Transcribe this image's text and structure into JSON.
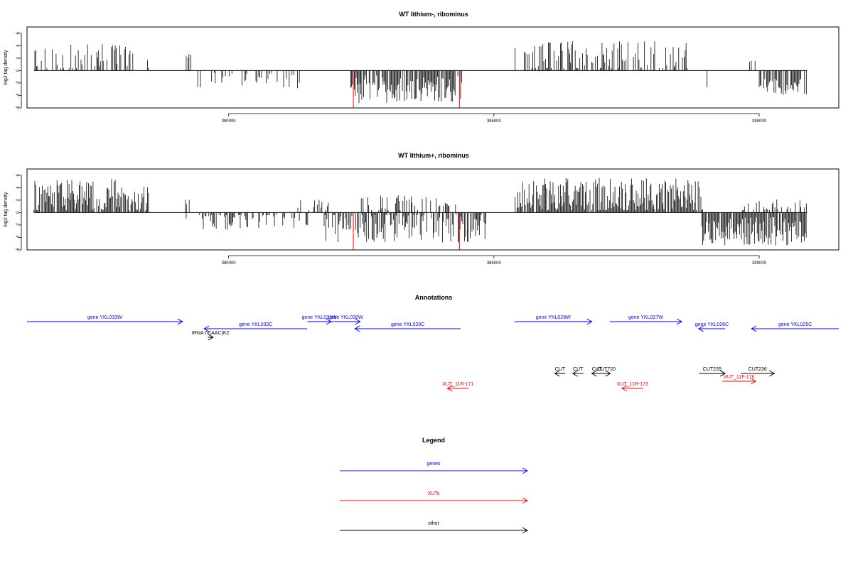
{
  "colors": {
    "genes": "#0000ff",
    "xuts": "#ff0000",
    "other": "#000000",
    "bars": "#000000",
    "axis": "#000000"
  },
  "chart_data": [
    {
      "type": "bar",
      "title": "WT lithium-, ribominus",
      "ylabel": "log2 tag density",
      "xlim": [
        376200,
        391500
      ],
      "ylim": [
        -6,
        7
      ],
      "x_ticks": [
        380000,
        385000,
        390000
      ],
      "y_ticks": [
        -6,
        -4,
        -2,
        0,
        2,
        4,
        6
      ],
      "red_markers": [
        382350,
        384350
      ],
      "plus_regions": [
        {
          "start": 376330,
          "end": 378500,
          "mean": 1.9,
          "spread": 2.4,
          "density": 0.4
        },
        {
          "start": 379200,
          "end": 379300,
          "mean": 2.2,
          "spread": 0.5,
          "density": 0.3
        },
        {
          "start": 385400,
          "end": 388650,
          "mean": 2.2,
          "spread": 2.6,
          "density": 0.45
        },
        {
          "start": 389800,
          "end": 389950,
          "mean": 2.0,
          "spread": 1.0,
          "density": 0.2
        }
      ],
      "minus_regions": [
        {
          "start": 379400,
          "end": 381450,
          "mean": -1.6,
          "spread": 1.3,
          "density": 0.25
        },
        {
          "start": 382300,
          "end": 384400,
          "mean": -3.0,
          "spread": 2.2,
          "density": 0.85
        },
        {
          "start": 389000,
          "end": 389050,
          "mean": -2.8,
          "spread": 0.3,
          "density": 0.2
        },
        {
          "start": 390000,
          "end": 390900,
          "mean": -2.6,
          "spread": 1.3,
          "density": 0.55
        }
      ]
    },
    {
      "type": "bar",
      "title": "WT lithium+, ribominus",
      "ylabel": "log2 tag density",
      "xlim": [
        376200,
        391500
      ],
      "ylim": [
        -6,
        7
      ],
      "x_ticks": [
        380000,
        385000,
        390000
      ],
      "y_ticks": [
        -6,
        -4,
        -2,
        0,
        2,
        4,
        6
      ],
      "red_markers": [
        382350,
        384350
      ],
      "plus_regions": [
        {
          "start": 376330,
          "end": 378500,
          "mean": 2.7,
          "spread": 2.7,
          "density": 0.9
        },
        {
          "start": 379100,
          "end": 379300,
          "mean": 1.5,
          "spread": 1.3,
          "density": 0.3
        },
        {
          "start": 381200,
          "end": 381900,
          "mean": 1.3,
          "spread": 1.0,
          "density": 0.4
        },
        {
          "start": 382500,
          "end": 384300,
          "mean": 1.3,
          "spread": 1.5,
          "density": 0.4
        },
        {
          "start": 385400,
          "end": 388950,
          "mean": 2.8,
          "spread": 2.8,
          "density": 0.95
        },
        {
          "start": 389600,
          "end": 390900,
          "mean": 1.2,
          "spread": 1.0,
          "density": 0.4
        }
      ],
      "minus_regions": [
        {
          "start": 379200,
          "end": 379300,
          "mean": -1.0,
          "spread": 0.5,
          "density": 0.2
        },
        {
          "start": 379400,
          "end": 381500,
          "mean": -1.4,
          "spread": 1.4,
          "density": 0.45
        },
        {
          "start": 381800,
          "end": 384900,
          "mean": -2.4,
          "spread": 2.4,
          "density": 0.7
        },
        {
          "start": 388900,
          "end": 390900,
          "mean": -3.0,
          "spread": 2.3,
          "density": 0.9
        }
      ]
    }
  ],
  "annotations": {
    "title": "Annotations",
    "genes": [
      {
        "label": "gene YKL033W",
        "start": 376200,
        "end": 379140,
        "strand": "+",
        "row": 0
      },
      {
        "label": "gene YKL032C",
        "start": 379550,
        "end": 381500,
        "strand": "-",
        "row": 1
      },
      {
        "label": "gene YKL031W",
        "start": 381500,
        "end": 381950,
        "strand": "+",
        "row": 0
      },
      {
        "label": "gene YKL030W",
        "start": 381950,
        "end": 382500,
        "strand": "+",
        "row": 0
      },
      {
        "label": "gene YKL029C",
        "start": 382400,
        "end": 384400,
        "strand": "-",
        "row": 1
      },
      {
        "label": "gene YKL028W",
        "start": 385420,
        "end": 386880,
        "strand": "+",
        "row": 0
      },
      {
        "label": "gene YKL027W",
        "start": 387220,
        "end": 388580,
        "strand": "+",
        "row": 0
      },
      {
        "label": "gene YKL026C",
        "start": 388900,
        "end": 389400,
        "strand": "-",
        "row": 1
      },
      {
        "label": "gene YKL025C",
        "start": 389900,
        "end": 391550,
        "strand": "-",
        "row": 1
      }
    ],
    "xuts": [
      {
        "label": "XUT_11R-171",
        "start": 384150,
        "end": 384550,
        "strand": "-",
        "row": 5
      },
      {
        "label": "XUT_11R-173",
        "start": 387450,
        "end": 387850,
        "strand": "-",
        "row": 5
      },
      {
        "label": "XUT_11F-176",
        "start": 389350,
        "end": 389980,
        "strand": "+",
        "row": 4
      }
    ],
    "other": [
      {
        "label": "tRNA tV(AAC)K2",
        "start": 379620,
        "end": 379720,
        "strand": "+",
        "row": 2
      },
      {
        "label": "CUT",
        "start": 386180,
        "end": 386380,
        "strand": "-",
        "row": 3
      },
      {
        "label": "CUT",
        "start": 386520,
        "end": 386720,
        "strand": "-",
        "row": 3
      },
      {
        "label": "CUT",
        "start": 386880,
        "end": 387080,
        "strand": "-",
        "row": 3
      },
      {
        "label": "CUT720",
        "start": 387080,
        "end": 387230,
        "strand": "+",
        "row": 3
      },
      {
        "label": "CUT235",
        "start": 388910,
        "end": 389400,
        "strand": "+",
        "row": 3
      },
      {
        "label": "CUT236",
        "start": 389700,
        "end": 390330,
        "strand": "+",
        "row": 3
      }
    ]
  },
  "legend": {
    "title": "Legend",
    "items": [
      {
        "label": "genes",
        "color": "#0000ff"
      },
      {
        "label": "XUTs",
        "color": "#ff0000"
      },
      {
        "label": "other",
        "color": "#000000"
      }
    ]
  }
}
